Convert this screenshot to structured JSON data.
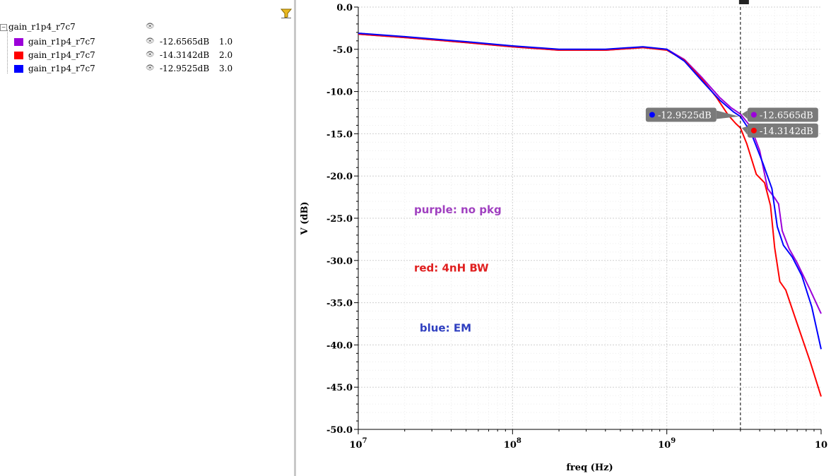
{
  "legend": {
    "root_label": "gain_r1p4_r7c7",
    "items": [
      {
        "name": "gain_r1p4_r7c7",
        "value": "-12.6565dB",
        "index": "1.0",
        "color": "#9b00d9"
      },
      {
        "name": "gain_r1p4_r7c7",
        "value": "-14.3142dB",
        "index": "2.0",
        "color": "#ff0000"
      },
      {
        "name": "gain_r1p4_r7c7",
        "value": "-12.9525dB",
        "index": "3.0",
        "color": "#0000ff"
      }
    ],
    "icons": [
      "eye-icon",
      "filter-icon",
      "tree-toggle-icon"
    ]
  },
  "chart_data": {
    "type": "line",
    "xlabel": "freq (Hz)",
    "ylabel": "V (dB)",
    "xscale": "log",
    "xlim": [
      10000000,
      10000000000
    ],
    "ylim": [
      -50,
      0
    ],
    "x_ticks": [
      10000000,
      100000000,
      1000000000,
      10000000000
    ],
    "x_tick_labels": [
      {
        "base": "10",
        "exp": "7"
      },
      {
        "base": "10",
        "exp": "8"
      },
      {
        "base": "10",
        "exp": "9"
      },
      {
        "base": "10",
        "exp": ""
      }
    ],
    "y_ticks": [
      0,
      -5,
      -10,
      -15,
      -20,
      -25,
      -30,
      -35,
      -40,
      -45,
      -50
    ],
    "y_tick_labels": [
      "0.0",
      "-5.0",
      "-10.0",
      "-15.0",
      "-20.0",
      "-25.0",
      "-30.0",
      "-35.0",
      "-40.0",
      "-45.0",
      "-50.0"
    ],
    "grid": true,
    "cursor_x": 3000000000,
    "series": [
      {
        "color": "#9b00d9",
        "points": [
          [
            10000000,
            -3.2
          ],
          [
            20000000,
            -3.6
          ],
          [
            50000000,
            -4.2
          ],
          [
            100000000,
            -4.7
          ],
          [
            200000000,
            -5.1
          ],
          [
            400000000,
            -5.1
          ],
          [
            700000000,
            -4.8
          ],
          [
            1000000000,
            -5.0
          ],
          [
            1300000000,
            -6.2
          ],
          [
            1700000000,
            -8.4
          ],
          [
            2200000000,
            -10.7
          ],
          [
            2600000000,
            -11.9
          ],
          [
            3000000000,
            -12.66
          ],
          [
            3500000000,
            -14.2
          ],
          [
            4000000000,
            -17.0
          ],
          [
            4500000000,
            -21.5
          ],
          [
            5000000000,
            -22.6
          ],
          [
            5300000000,
            -23.3
          ],
          [
            5600000000,
            -26.5
          ],
          [
            6200000000,
            -28.6
          ],
          [
            7000000000,
            -30.3
          ],
          [
            8500000000,
            -33.5
          ],
          [
            10000000000,
            -36.3
          ]
        ]
      },
      {
        "color": "#ff0000",
        "points": [
          [
            10000000,
            -3.2
          ],
          [
            20000000,
            -3.6
          ],
          [
            50000000,
            -4.2
          ],
          [
            100000000,
            -4.7
          ],
          [
            200000000,
            -5.1
          ],
          [
            400000000,
            -5.1
          ],
          [
            700000000,
            -4.8
          ],
          [
            1000000000,
            -5.1
          ],
          [
            1300000000,
            -6.3
          ],
          [
            1700000000,
            -8.6
          ],
          [
            2100000000,
            -10.7
          ],
          [
            2500000000,
            -12.8
          ],
          [
            2800000000,
            -13.8
          ],
          [
            3000000000,
            -14.31
          ],
          [
            3300000000,
            -16.2
          ],
          [
            3800000000,
            -19.8
          ],
          [
            4300000000,
            -20.8
          ],
          [
            4700000000,
            -23.5
          ],
          [
            5000000000,
            -28.5
          ],
          [
            5400000000,
            -32.5
          ],
          [
            5900000000,
            -33.5
          ],
          [
            7000000000,
            -37.5
          ],
          [
            8500000000,
            -42.0
          ],
          [
            10000000000,
            -46.1
          ]
        ]
      },
      {
        "color": "#0000ff",
        "points": [
          [
            10000000,
            -3.1
          ],
          [
            20000000,
            -3.5
          ],
          [
            50000000,
            -4.1
          ],
          [
            100000000,
            -4.6
          ],
          [
            200000000,
            -5.0
          ],
          [
            400000000,
            -5.0
          ],
          [
            700000000,
            -4.7
          ],
          [
            1000000000,
            -5.0
          ],
          [
            1300000000,
            -6.4
          ],
          [
            1700000000,
            -8.8
          ],
          [
            2200000000,
            -11.0
          ],
          [
            2700000000,
            -12.4
          ],
          [
            3000000000,
            -12.95
          ],
          [
            3500000000,
            -14.8
          ],
          [
            4200000000,
            -18.5
          ],
          [
            4800000000,
            -21.5
          ],
          [
            5200000000,
            -26.0
          ],
          [
            5700000000,
            -28.2
          ],
          [
            6500000000,
            -29.6
          ],
          [
            7500000000,
            -31.8
          ],
          [
            8700000000,
            -35.5
          ],
          [
            10000000000,
            -40.5
          ]
        ]
      }
    ],
    "markers": [
      {
        "label": "-12.6565dB",
        "color": "#9b00d9"
      },
      {
        "label": "-14.3142dB",
        "color": "#ff0000"
      },
      {
        "label": "-12.9525dB",
        "color": "#0000ff"
      }
    ],
    "annotations": [
      {
        "text": "purple: no pkg",
        "color": "#a040c0"
      },
      {
        "text": "red: 4nH BW",
        "color": "#e02020"
      },
      {
        "text": "blue: EM",
        "color": "#3040c0"
      }
    ]
  }
}
